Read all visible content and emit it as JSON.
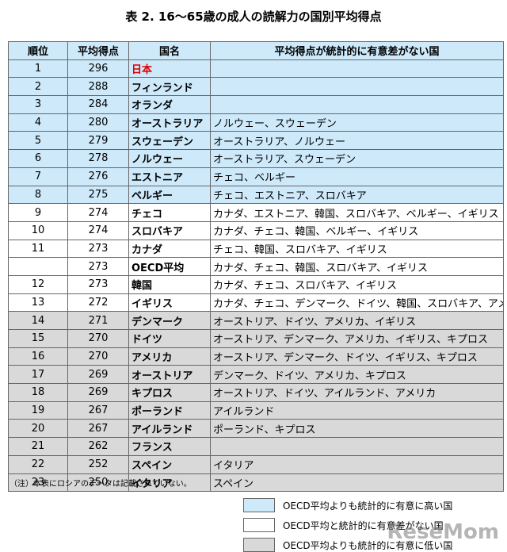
{
  "title": "表 2. 16～65歳の成人の読解力の国別平均得点",
  "table": {
    "header": [
      "順位",
      "平均得点",
      "国名",
      "平均得点が統計的に有意差がない国"
    ],
    "rows": [
      {
        "rank": "1",
        "score": "296",
        "country": "日本",
        "country_color": "#e00000",
        "color": "#cde9fa"
      },
      {
        "rank": "2",
        "score": "288",
        "country": "フィンランド",
        "color": "#cde9fa"
      },
      {
        "rank": "3",
        "score": "284",
        "country": "オランダ",
        "color": "#cde9fa"
      },
      {
        "rank": "4",
        "score": "280",
        "country": "オーストラリア",
        "similar": "ノルウェー、スウェーデン",
        "color": "#cde9fa"
      },
      {
        "rank": "5",
        "score": "279",
        "country": "スウェーデン",
        "similar": "オーストラリア、ノルウェー",
        "color": "#cde9fa"
      },
      {
        "rank": "6",
        "score": "278",
        "country": "ノルウェー",
        "similar": "オーストラリア、スウェーデン",
        "color": "#cde9fa"
      },
      {
        "rank": "7",
        "score": "276",
        "country": "エストニア",
        "similar": "チェコ、ベルギー",
        "color": "#cde9fa"
      },
      {
        "rank": "8",
        "score": "275",
        "country": "ベルギー",
        "similar": "チェコ、エストニア、スロバキア",
        "color": "#cde9fa"
      },
      {
        "rank": "9",
        "score": "274",
        "country": "チェコ",
        "similar": "カナダ、エストニア、韓国、スロバキア、ベルギー、イギリス",
        "color": "#ffffff"
      },
      {
        "rank": "10",
        "score": "274",
        "country": "スロバキア",
        "similar": "カナダ、チェコ、韓国、ベルギー、イギリス",
        "color": "#ffffff"
      },
      {
        "rank": "11",
        "score": "273",
        "country": "カナダ",
        "similar": "チェコ、韓国、スロバキア、イギリス",
        "color": "#ffffff"
      },
      {
        "score": "273",
        "country": "OECD平均",
        "similar": "カナダ、チェコ、韓国、スロバキア、イギリス",
        "color": "#ffffff"
      },
      {
        "rank": "12",
        "score": "273",
        "country": "韓国",
        "similar": "カナダ、チェコ、スロバキア、イギリス",
        "color": "#ffffff"
      },
      {
        "rank": "13",
        "score": "272",
        "country": "イギリス",
        "similar": "カナダ、チェコ、デンマーク、ドイツ、韓国、スロバキア、アメリカ",
        "color": "#ffffff"
      },
      {
        "rank": "14",
        "score": "271",
        "country": "デンマーク",
        "similar": "オーストリア、ドイツ、アメリカ、イギリス",
        "color": "#d9d9d9"
      },
      {
        "rank": "15",
        "score": "270",
        "country": "ドイツ",
        "similar": "オーストリア、デンマーク、アメリカ、イギリス、キプロス",
        "color": "#d9d9d9"
      },
      {
        "rank": "16",
        "score": "270",
        "country": "アメリカ",
        "similar": "オーストリア、デンマーク、ドイツ、イギリス、キプロス",
        "color": "#d9d9d9"
      },
      {
        "rank": "17",
        "score": "269",
        "country": "オーストリア",
        "similar": "デンマーク、ドイツ、アメリカ、キプロス",
        "color": "#d9d9d9"
      },
      {
        "rank": "18",
        "score": "269",
        "country": "キプロス",
        "similar": "オーストリア、ドイツ、アイルランド、アメリカ",
        "color": "#d9d9d9"
      },
      {
        "rank": "19",
        "score": "267",
        "country": "ポーランド",
        "similar": "アイルランド",
        "color": "#d9d9d9"
      },
      {
        "rank": "20",
        "score": "267",
        "country": "アイルランド",
        "similar": "ポーランド、キプロス",
        "color": "#d9d9d9"
      },
      {
        "rank": "21",
        "score": "262",
        "country": "フランス",
        "color": "#d9d9d9"
      },
      {
        "rank": "22",
        "score": "252",
        "country": "スペイン",
        "similar": "イタリア",
        "color": "#d9d9d9"
      },
      {
        "rank": "23",
        "score": "250",
        "country": "イタリア",
        "similar": "スペイン",
        "color": "#d9d9d9"
      }
    ]
  },
  "note": "（注）本表にロシアのデータは記載されていない。",
  "legend": [
    {
      "label": "OECD平均よりも統計的に有意に高い国",
      "color": "#cde9fa"
    },
    {
      "label": "OECD平均と統計的に有意差がない国",
      "color": "#ffffff"
    },
    {
      "label": "OECD平均よりも統計的に有意に低い国",
      "color": "#d9d9d9"
    }
  ],
  "watermark": "ReseMom"
}
